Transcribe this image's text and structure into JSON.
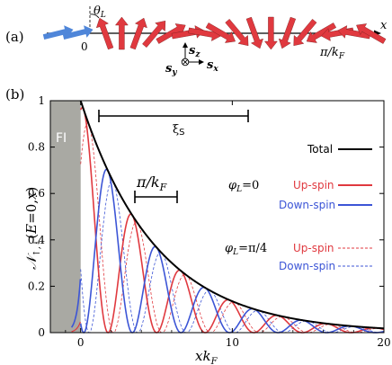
{
  "panel_a": {
    "label": "(a)",
    "theta_label": "θ",
    "theta_sub": "L",
    "origin_label": "0",
    "x_label": "x",
    "pi_kf_label": "π/k",
    "pi_kf_sub": "F",
    "sz": "s",
    "sz_sub": "z",
    "sy": "s",
    "sy_sub": "y",
    "sx": "s",
    "sx_sub": "x",
    "arrow_colors": {
      "fi": "#4f86d9",
      "sc": "#e0393f"
    },
    "n_fi_arrows": 2,
    "sc_spin_angles_deg": [
      -20,
      0,
      20,
      40,
      60,
      80,
      100,
      120,
      140,
      160,
      180,
      200,
      220,
      240,
      260,
      280,
      300
    ]
  },
  "panel_b": {
    "label": "(b)",
    "fi_label": "FI",
    "xi_label": "ξ",
    "xi_sub": "S",
    "pi_kf_label": "π/k",
    "pi_kf_sub": "F",
    "total_label": "Total",
    "phi0_label": "φ",
    "phi0_sub": "L",
    "phi0_value": "=0",
    "phi4_label": "φ",
    "phi4_sub": "L",
    "phi4_value": "=π/4",
    "up_label": "Up-spin",
    "down_label": "Down-spin",
    "up_label2": "Up-spin",
    "down_label2": "Down-spin"
  },
  "chart_data": {
    "type": "line",
    "xlabel": "xk_F",
    "ylabel": "N_{↑,↓}(E=0,x)",
    "xlim": [
      -2,
      20
    ],
    "ylim": [
      0,
      1
    ],
    "x_ticks": [
      "0",
      "10",
      "20"
    ],
    "y_ticks": [
      "0",
      "0.2",
      "0.4",
      "0.6",
      "0.8",
      "1"
    ],
    "fi_region": [
      -2,
      0
    ],
    "colors": {
      "total": "#000000",
      "up": "#e0393f",
      "down": "#3c55d6",
      "fi": "#a9a9a3"
    },
    "xi_s": 11.4,
    "pi_over_kf_half_width": 1.57,
    "series": [
      {
        "name": "Total",
        "style": "solid",
        "decay_length": 5.0,
        "amplitude": 1.0
      },
      {
        "name": "Up-spin",
        "style": "solid",
        "phi_L": "0",
        "envelope": "cos^2(x/2)"
      },
      {
        "name": "Down-spin",
        "style": "solid",
        "phi_L": "0",
        "envelope": "sin^2(x/2)"
      },
      {
        "name": "Up-spin",
        "style": "dashed",
        "phi_L": "π/4"
      },
      {
        "name": "Down-spin",
        "style": "dashed",
        "phi_L": "π/4"
      }
    ],
    "annotations": [
      "FI",
      "ξ_S",
      "π/k_F",
      "Total",
      "φ_L=0",
      "φ_L=π/4"
    ]
  }
}
